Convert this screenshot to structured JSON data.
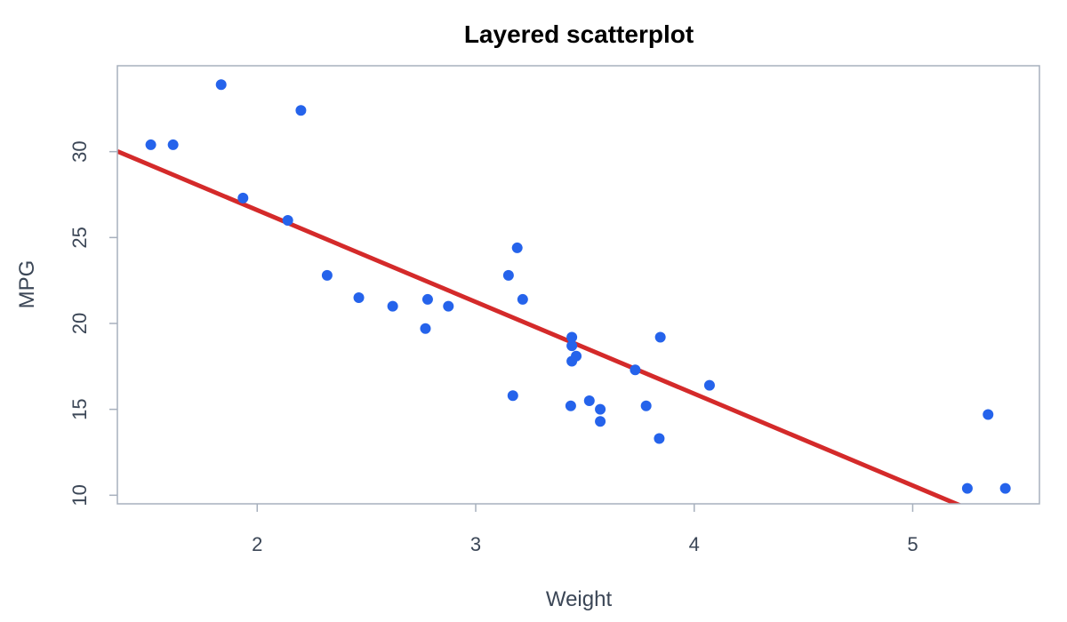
{
  "chart_data": {
    "type": "scatter",
    "title": "Layered scatterplot",
    "xlabel": "Weight",
    "ylabel": "MPG",
    "xlim": [
      1.36,
      5.58
    ],
    "ylim": [
      9.5,
      35.0
    ],
    "x_ticks": [
      2,
      3,
      4,
      5
    ],
    "y_ticks": [
      10,
      15,
      20,
      25,
      30
    ],
    "grid": false,
    "legend": "none",
    "point_color": "#2563eb",
    "line_color": "#d42a2a",
    "series": [
      {
        "type": "scatter",
        "points": [
          {
            "x": 1.513,
            "y": 30.4
          },
          {
            "x": 1.615,
            "y": 30.4
          },
          {
            "x": 1.835,
            "y": 33.9
          },
          {
            "x": 1.935,
            "y": 27.3
          },
          {
            "x": 2.14,
            "y": 26.0
          },
          {
            "x": 2.2,
            "y": 32.4
          },
          {
            "x": 2.32,
            "y": 22.8
          },
          {
            "x": 2.465,
            "y": 21.5
          },
          {
            "x": 2.62,
            "y": 21.0
          },
          {
            "x": 2.77,
            "y": 19.7
          },
          {
            "x": 2.78,
            "y": 21.4
          },
          {
            "x": 2.875,
            "y": 21.0
          },
          {
            "x": 3.15,
            "y": 22.8
          },
          {
            "x": 3.17,
            "y": 15.8
          },
          {
            "x": 3.19,
            "y": 24.4
          },
          {
            "x": 3.215,
            "y": 21.4
          },
          {
            "x": 3.435,
            "y": 15.2
          },
          {
            "x": 3.44,
            "y": 18.7
          },
          {
            "x": 3.44,
            "y": 19.2
          },
          {
            "x": 3.44,
            "y": 17.8
          },
          {
            "x": 3.46,
            "y": 18.1
          },
          {
            "x": 3.52,
            "y": 15.5
          },
          {
            "x": 3.57,
            "y": 14.3
          },
          {
            "x": 3.57,
            "y": 15.0
          },
          {
            "x": 3.73,
            "y": 17.3
          },
          {
            "x": 3.78,
            "y": 15.2
          },
          {
            "x": 3.84,
            "y": 13.3
          },
          {
            "x": 3.845,
            "y": 19.2
          },
          {
            "x": 4.07,
            "y": 16.4
          },
          {
            "x": 5.25,
            "y": 10.4
          },
          {
            "x": 5.345,
            "y": 14.7
          },
          {
            "x": 5.424,
            "y": 10.4
          }
        ]
      },
      {
        "type": "line",
        "intercept": 37.285,
        "slope": -5.344
      }
    ]
  }
}
